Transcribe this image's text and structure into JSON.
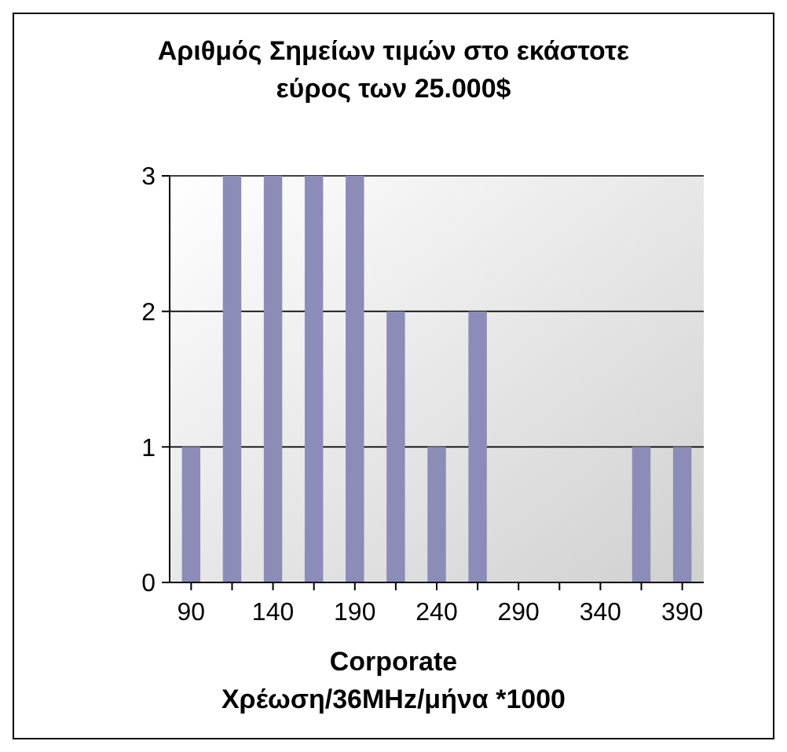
{
  "chart_data": {
    "type": "bar",
    "title": "Αριθμός Σημείων τιμών στο εκάστοτε εύρος των 25.000$",
    "xlabel": "Corporate\nΧρέωση/36MHz/μήνα *1000",
    "categories": [
      "90",
      null,
      "140",
      null,
      "190",
      null,
      "240",
      null,
      "290",
      null,
      "340",
      null,
      "390"
    ],
    "values": [
      1,
      3,
      3,
      3,
      3,
      2,
      1,
      2,
      0,
      0,
      0,
      1,
      1
    ],
    "color": "#8c8cb8",
    "ylim": [
      0,
      3
    ],
    "yticks": [
      0,
      1,
      2,
      3
    ],
    "grid": "y"
  }
}
